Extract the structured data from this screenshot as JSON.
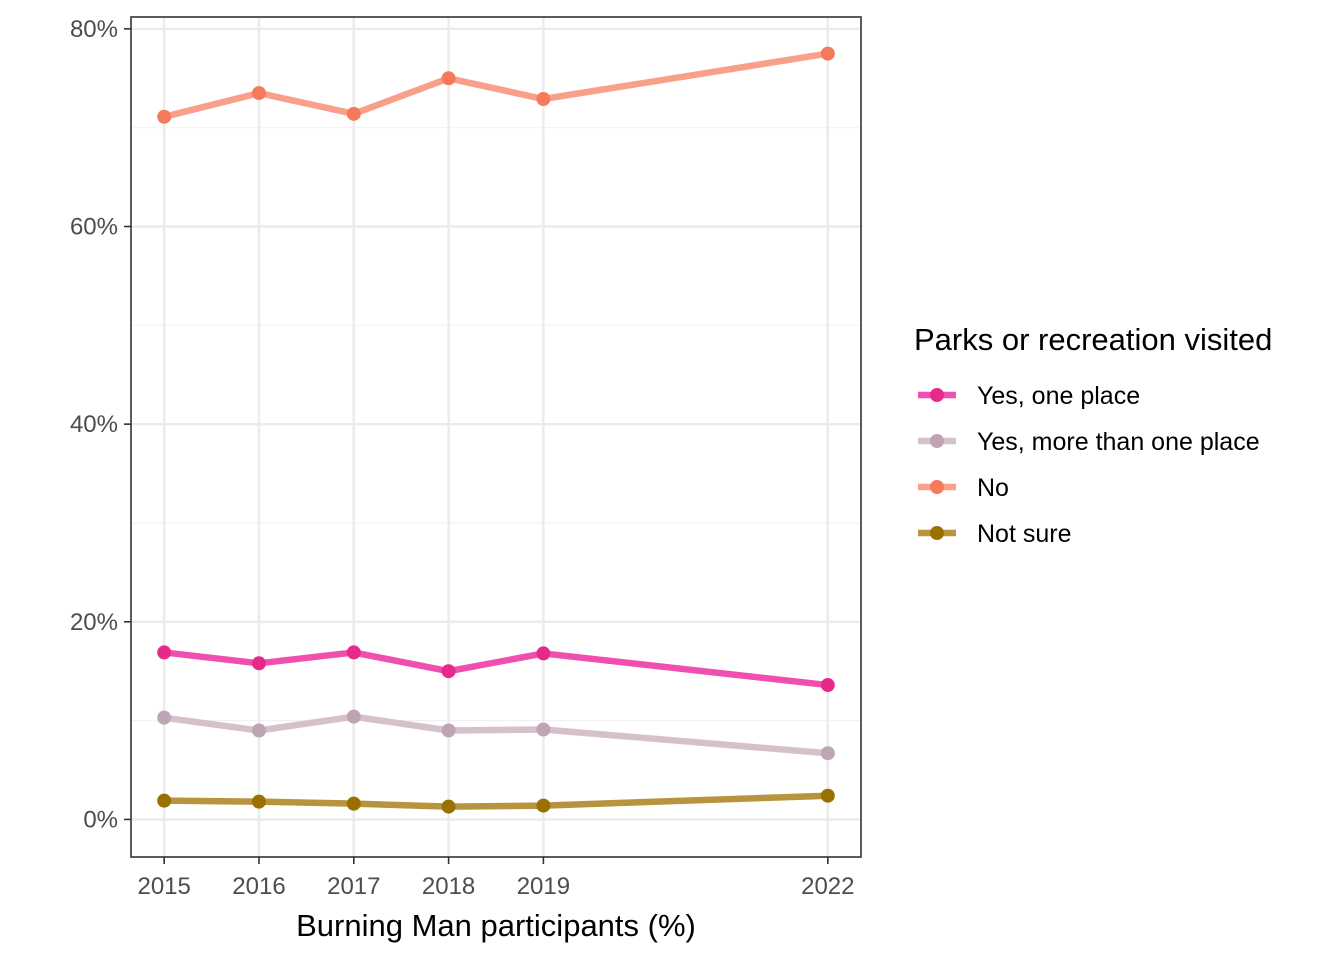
{
  "chart_data": {
    "type": "line",
    "title": "",
    "xlabel": "Burning Man participants (%)",
    "ylabel": "",
    "x": [
      2015,
      2016,
      2017,
      2018,
      2019,
      2022
    ],
    "x_tick_labels": [
      "2015",
      "2016",
      "2017",
      "2018",
      "2019",
      "2022"
    ],
    "xlim": [
      2014.65,
      2022.35
    ],
    "ylim": [
      -0.038,
      0.812
    ],
    "y_ticks": [
      0,
      0.2,
      0.4,
      0.6,
      0.8
    ],
    "y_tick_labels": [
      "0%",
      "20%",
      "40%",
      "60%",
      "80%"
    ],
    "grid": true,
    "legend_title": "Parks or recreation visited",
    "legend_position": "right",
    "series": [
      {
        "name": "Yes, one place",
        "color": "#e7298a",
        "line_color": "#ef4fae",
        "values": [
          0.169,
          0.158,
          0.169,
          0.15,
          0.168,
          0.136
        ]
      },
      {
        "name": "Yes, more than one place",
        "color": "#bfa5b4",
        "line_color": "#d5c1cb",
        "values": [
          0.103,
          0.09,
          0.104,
          0.09,
          0.091,
          0.067
        ]
      },
      {
        "name": "No",
        "color": "#f5795b",
        "line_color": "#f9a08b",
        "values": [
          0.711,
          0.735,
          0.714,
          0.75,
          0.729,
          0.775
        ]
      },
      {
        "name": "Not sure",
        "color": "#9c7000",
        "line_color": "#b8943f",
        "values": [
          0.019,
          0.018,
          0.016,
          0.013,
          0.014,
          0.024
        ]
      }
    ]
  }
}
